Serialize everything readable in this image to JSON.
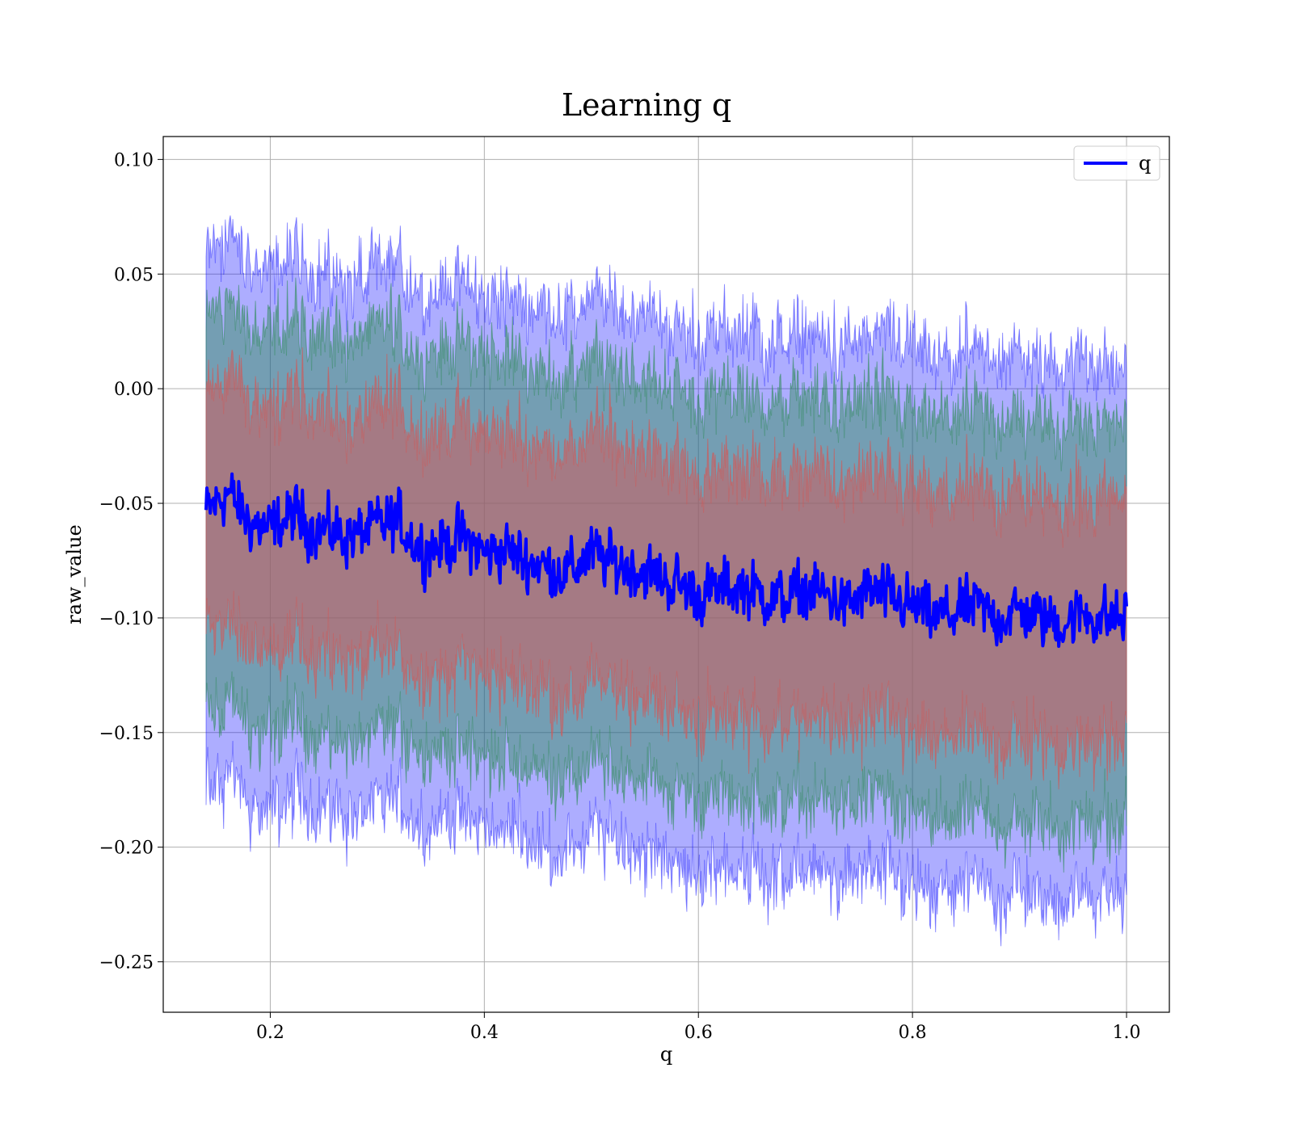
{
  "chart_data": {
    "type": "line",
    "title": "Learning q",
    "xlabel": "q",
    "ylabel": "raw_value",
    "xlim": [
      0.1,
      1.04
    ],
    "ylim": [
      -0.272,
      0.11
    ],
    "x_ticks": [
      {
        "value": 0.2,
        "label": "0.2"
      },
      {
        "value": 0.4,
        "label": "0.4"
      },
      {
        "value": 0.6,
        "label": "0.6"
      },
      {
        "value": 0.8,
        "label": "0.8"
      },
      {
        "value": 1.0,
        "label": "1.0"
      }
    ],
    "y_ticks": [
      {
        "value": 0.1,
        "label": "0.10"
      },
      {
        "value": 0.05,
        "label": "0.05"
      },
      {
        "value": 0.0,
        "label": "0.00"
      },
      {
        "value": -0.05,
        "label": "−0.05"
      },
      {
        "value": -0.1,
        "label": "−0.10"
      },
      {
        "value": -0.15,
        "label": "−0.15"
      },
      {
        "value": -0.2,
        "label": "−0.20"
      },
      {
        "value": -0.25,
        "label": "−0.25"
      }
    ],
    "grid": true,
    "legend": {
      "position": "top-right",
      "entries": [
        {
          "label": "q",
          "color": "#0000ff"
        }
      ]
    },
    "series": [
      {
        "name": "q",
        "color": "#0000ff",
        "x": [
          0.14,
          0.16,
          0.18,
          0.2,
          0.22,
          0.24,
          0.26,
          0.28,
          0.3,
          0.32,
          0.34,
          0.36,
          0.38,
          0.4,
          0.42,
          0.44,
          0.46,
          0.48,
          0.5,
          0.52,
          0.54,
          0.56,
          0.58,
          0.6,
          0.62,
          0.64,
          0.66,
          0.68,
          0.7,
          0.72,
          0.74,
          0.76,
          0.78,
          0.8,
          0.82,
          0.84,
          0.86,
          0.88,
          0.9,
          0.92,
          0.94,
          0.96,
          0.98,
          1.0
        ],
        "y": [
          -0.054,
          -0.045,
          -0.058,
          -0.062,
          -0.055,
          -0.06,
          -0.063,
          -0.064,
          -0.06,
          -0.058,
          -0.07,
          -0.068,
          -0.065,
          -0.072,
          -0.07,
          -0.075,
          -0.078,
          -0.08,
          -0.072,
          -0.076,
          -0.078,
          -0.082,
          -0.085,
          -0.09,
          -0.088,
          -0.086,
          -0.09,
          -0.092,
          -0.088,
          -0.09,
          -0.095,
          -0.088,
          -0.092,
          -0.095,
          -0.1,
          -0.098,
          -0.095,
          -0.1,
          -0.097,
          -0.1,
          -0.102,
          -0.098,
          -0.1,
          -0.1
        ],
        "noise_amplitude": 0.013,
        "outer_band": {
          "color": "#0000ff",
          "lower_offset": -0.122,
          "upper_offset": 0.112,
          "opacity": 0.32
        },
        "middle_band": {
          "color": "#2e8b57",
          "lower_offset": -0.09,
          "upper_offset": 0.085,
          "opacity": 0.45
        },
        "inner_band": {
          "color": "#cd5c5c",
          "lower_offset": -0.055,
          "upper_offset": 0.052,
          "opacity": 0.55
        }
      }
    ]
  }
}
